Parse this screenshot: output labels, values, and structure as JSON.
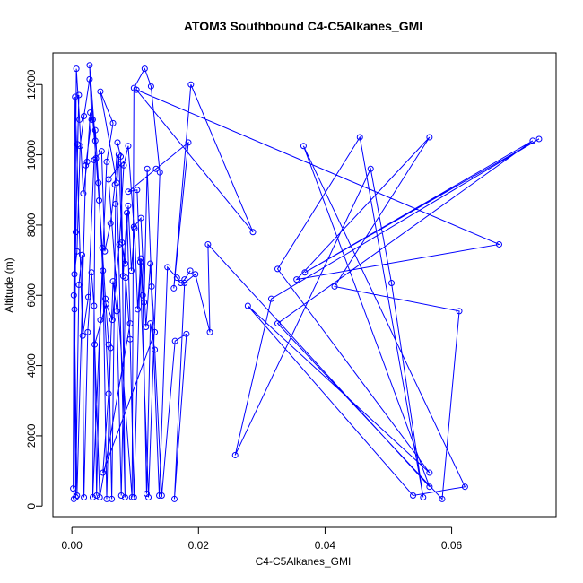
{
  "chart_data": {
    "type": "line",
    "title": "ATOM3 Southbound C4-C5Alkanes_GMI",
    "xlabel": "C4-C5Alkanes_GMI",
    "ylabel": "Altitude (m)",
    "xlim": [
      -0.003,
      0.0765
    ],
    "ylim": [
      -300,
      12900
    ],
    "xticks": [
      0.0,
      0.02,
      0.04,
      0.06
    ],
    "xtick_labels": [
      "0.00",
      "0.02",
      "0.04",
      "0.06"
    ],
    "yticks": [
      0,
      2000,
      4000,
      6000,
      8000,
      10000,
      12000
    ],
    "ytick_labels": [
      "0",
      "2000",
      "4000",
      "6000",
      "8000",
      "10000",
      "12000"
    ],
    "series_color": "#0000ff",
    "marker": "open-circle",
    "series": [
      {
        "name": "",
        "points": [
          [
            0.0003,
            200
          ],
          [
            0.0006,
            7800
          ],
          [
            0.0011,
            11700
          ],
          [
            0.0009,
            10300
          ],
          [
            0.0004,
            5600
          ],
          [
            0.0008,
            300
          ],
          [
            0.0022,
            9700
          ],
          [
            0.0031,
            11000
          ],
          [
            0.0028,
            12550
          ],
          [
            0.0037,
            10400
          ],
          [
            0.0033,
            250
          ],
          [
            0.0055,
            9800
          ],
          [
            0.0065,
            10900
          ],
          [
            0.0045,
            11800
          ],
          [
            0.0071,
            9200
          ],
          [
            0.0084,
            250
          ],
          [
            0.0078,
            9750
          ],
          [
            0.0058,
            9300
          ],
          [
            0.0095,
            250
          ],
          [
            0.0098,
            11900
          ],
          [
            0.0115,
            12450
          ],
          [
            0.0125,
            11950
          ],
          [
            0.0139,
            9500
          ],
          [
            0.0121,
            250
          ],
          [
            0.0103,
            9000
          ],
          [
            0.0089,
            8950
          ],
          [
            0.0133,
            9600
          ],
          [
            0.0184,
            10350
          ],
          [
            0.0161,
            6200
          ],
          [
            0.0188,
            12000
          ],
          [
            0.0286,
            7800
          ],
          [
            0.0102,
            11850
          ],
          [
            0.0675,
            7450
          ],
          [
            0.0355,
            6450
          ],
          [
            0.0565,
            10500
          ],
          [
            0.0415,
            6250
          ],
          [
            0.0612,
            5550
          ],
          [
            0.0585,
            200
          ],
          [
            0.0325,
            5200
          ],
          [
            0.0728,
            10400
          ],
          [
            0.0368,
            6650
          ],
          [
            0.0738,
            10450
          ],
          [
            0.0315,
            5900
          ],
          [
            0.0258,
            1450
          ],
          [
            0.0472,
            9600
          ],
          [
            0.0505,
            6350
          ],
          [
            0.0555,
            250
          ],
          [
            0.0455,
            10500
          ],
          [
            0.0325,
            6750
          ],
          [
            0.0565,
            950
          ],
          [
            0.0278,
            5700
          ],
          [
            0.0539,
            300
          ],
          [
            0.0621,
            550
          ],
          [
            0.0366,
            10250
          ],
          [
            0.0565,
            550
          ],
          [
            0.0215,
            7450
          ],
          [
            0.0218,
            4950
          ],
          [
            0.0195,
            6600
          ],
          [
            0.0178,
            6350
          ],
          [
            0.0162,
            200
          ],
          [
            0.0181,
            4900
          ],
          [
            0.0163,
            4700
          ],
          [
            0.0142,
            300
          ],
          [
            0.0131,
            4450
          ],
          [
            0.0124,
            5200
          ],
          [
            0.0118,
            350
          ],
          [
            0.0112,
            6000
          ],
          [
            0.0108,
            6950
          ],
          [
            0.0098,
            250
          ],
          [
            0.0092,
            4750
          ],
          [
            0.0085,
            6500
          ],
          [
            0.0078,
            300
          ],
          [
            0.0071,
            5550
          ],
          [
            0.0065,
            6400
          ],
          [
            0.0061,
            4500
          ],
          [
            0.0055,
            200
          ],
          [
            0.0049,
            6700
          ],
          [
            0.0045,
            5300
          ],
          [
            0.0039,
            300
          ],
          [
            0.0035,
            5700
          ],
          [
            0.0031,
            6650
          ],
          [
            0.0025,
            4950
          ],
          [
            0.0019,
            250
          ],
          [
            0.0016,
            7150
          ],
          [
            0.0011,
            6300
          ],
          [
            0.0006,
            250
          ],
          [
            0.0004,
            6600
          ],
          [
            0.0008,
            7250
          ],
          [
            0.0013,
            10250
          ],
          [
            0.0019,
            11100
          ],
          [
            0.0028,
            12150
          ],
          [
            0.0033,
            11000
          ],
          [
            0.0038,
            9900
          ],
          [
            0.0043,
            8700
          ],
          [
            0.0048,
            7350
          ],
          [
            0.0053,
            5900
          ],
          [
            0.0058,
            4600
          ],
          [
            0.0063,
            200
          ],
          [
            0.0069,
            8600
          ],
          [
            0.0074,
            10000
          ],
          [
            0.0079,
            7500
          ],
          [
            0.0084,
            6900
          ],
          [
            0.0089,
            8550
          ],
          [
            0.0094,
            6700
          ],
          [
            0.0099,
            7900
          ],
          [
            0.0104,
            5600
          ],
          [
            0.0109,
            7050
          ],
          [
            0.0114,
            5800
          ],
          [
            0.0119,
            9600
          ],
          [
            0.0126,
            6250
          ],
          [
            0.0131,
            4950
          ],
          [
            0.0049,
            950
          ],
          [
            0.0058,
            3200
          ],
          [
            0.0042,
            9200
          ],
          [
            0.0037,
            10700
          ],
          [
            0.0029,
            11200
          ],
          [
            0.0024,
            9800
          ],
          [
            0.0018,
            8900
          ],
          [
            0.0012,
            11000
          ],
          [
            0.0007,
            12450
          ],
          [
            0.0002,
            500
          ],
          [
            0.0003,
            6000
          ],
          [
            0.0005,
            11650
          ],
          [
            0.0017,
            4850
          ],
          [
            0.0026,
            5950
          ],
          [
            0.0035,
            9850
          ],
          [
            0.0047,
            10100
          ],
          [
            0.0052,
            7250
          ],
          [
            0.0061,
            8050
          ],
          [
            0.0068,
            9150
          ],
          [
            0.0072,
            10350
          ],
          [
            0.0077,
            9950
          ],
          [
            0.0081,
            6550
          ],
          [
            0.0087,
            8350
          ],
          [
            0.0092,
            5200
          ],
          [
            0.0044,
            250
          ],
          [
            0.0036,
            4600
          ],
          [
            0.0054,
            5750
          ],
          [
            0.0064,
            5300
          ],
          [
            0.0075,
            7450
          ],
          [
            0.0082,
            9700
          ],
          [
            0.0089,
            10250
          ],
          [
            0.0098,
            7950
          ],
          [
            0.0109,
            8200
          ],
          [
            0.0117,
            5100
          ],
          [
            0.0124,
            6900
          ],
          [
            0.0138,
            300
          ],
          [
            0.0151,
            6800
          ],
          [
            0.0166,
            6500
          ],
          [
            0.0172,
            6350
          ],
          [
            0.0178,
            6450
          ],
          [
            0.0187,
            6700
          ]
        ]
      }
    ]
  }
}
